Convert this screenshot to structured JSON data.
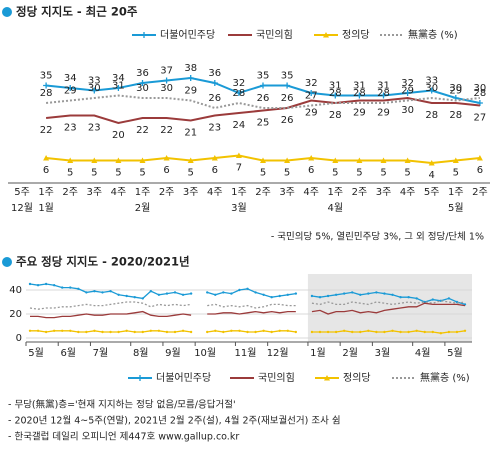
{
  "chart_data": [
    {
      "type": "line",
      "title": "정당 지지도 - 최근 20주",
      "categories": [
        "5주",
        "1주",
        "2주",
        "3주",
        "4주",
        "1주",
        "2주",
        "3주",
        "4주",
        "1주",
        "2주",
        "3주",
        "4주",
        "1주",
        "2주",
        "3주",
        "4주",
        "5주",
        "1주",
        "2주"
      ],
      "month_labels": [
        "12월",
        "1월",
        null,
        null,
        null,
        "2월",
        null,
        null,
        null,
        "3월",
        null,
        null,
        null,
        "4월",
        null,
        null,
        null,
        null,
        "5월",
        null
      ],
      "series": [
        {
          "name": "더불어민주당",
          "color": "#1a9ad6",
          "values": [
            null,
            35,
            34,
            33,
            34,
            36,
            37,
            38,
            36,
            32,
            35,
            35,
            32,
            31,
            31,
            31,
            32,
            33,
            30,
            28
          ]
        },
        {
          "name": "국민의힘",
          "color": "#9b3b3b",
          "values": [
            null,
            22,
            23,
            23,
            20,
            22,
            22,
            21,
            23,
            24,
            25,
            26,
            29,
            28,
            29,
            29,
            30,
            28,
            28,
            27
          ]
        },
        {
          "name": "정의당",
          "color": "#f2c200",
          "values": [
            null,
            6,
            5,
            5,
            5,
            5,
            6,
            5,
            6,
            7,
            5,
            5,
            6,
            5,
            5,
            5,
            5,
            4,
            5,
            6
          ]
        },
        {
          "name": "無黨층 (%)",
          "color": "#999999",
          "dashed": true,
          "values": [
            null,
            28,
            29,
            30,
            31,
            30,
            30,
            29,
            26,
            28,
            26,
            26,
            27,
            28,
            28,
            28,
            29,
            30,
            29,
            30
          ]
        }
      ],
      "note": "- 국민의당 5%, 열린민주당 3%, 그 외 정당/단체 1%"
    },
    {
      "type": "line",
      "title": "주요 정당 지지도 - 2020/2021년",
      "categories": [
        "5월",
        null,
        null,
        null,
        "6월",
        null,
        null,
        null,
        "7월",
        null,
        null,
        null,
        null,
        "8월",
        null,
        null,
        null,
        "9월",
        null,
        null,
        null,
        "10월",
        null,
        null,
        null,
        null,
        "11월",
        null,
        null,
        null,
        "12월",
        null,
        null,
        null,
        null,
        "1월",
        null,
        null,
        null,
        "2월",
        null,
        null,
        null,
        "3월",
        null,
        null,
        null,
        null,
        "4월",
        null,
        null,
        null,
        "5월",
        null,
        null
      ],
      "ylim": [
        0,
        50
      ],
      "yticks": [
        0,
        20,
        40
      ],
      "grid": true,
      "series": [
        {
          "name": "더불어민주당",
          "color": "#1a9ad6",
          "values": [
            45,
            44,
            45,
            44,
            42,
            42,
            41,
            38,
            39,
            38,
            39,
            36,
            35,
            34,
            33,
            39,
            36,
            37,
            38,
            36,
            37,
            null,
            38,
            36,
            38,
            37,
            40,
            41,
            38,
            36,
            34,
            35,
            36,
            37,
            null,
            35,
            34,
            35,
            36,
            37,
            38,
            36,
            37,
            38,
            37,
            36,
            34,
            34,
            33,
            30,
            32,
            31,
            33,
            30,
            28
          ]
        },
        {
          "name": "국민의힘",
          "color": "#9b3b3b",
          "values": [
            18,
            18,
            17,
            17,
            18,
            18,
            19,
            20,
            19,
            19,
            20,
            20,
            20,
            21,
            22,
            19,
            18,
            18,
            19,
            20,
            19,
            null,
            20,
            20,
            21,
            21,
            20,
            21,
            22,
            21,
            22,
            21,
            22,
            22,
            null,
            22,
            23,
            20,
            22,
            22,
            23,
            21,
            22,
            21,
            23,
            24,
            25,
            26,
            26,
            29,
            28,
            28,
            28,
            28,
            27
          ]
        },
        {
          "name": "정의당",
          "color": "#f2c200",
          "values": [
            6,
            6,
            5,
            6,
            6,
            6,
            5,
            5,
            6,
            5,
            5,
            5,
            6,
            5,
            5,
            6,
            6,
            5,
            5,
            6,
            5,
            null,
            5,
            6,
            5,
            6,
            6,
            5,
            5,
            6,
            5,
            6,
            6,
            5,
            null,
            5,
            5,
            5,
            5,
            6,
            5,
            5,
            6,
            5,
            5,
            6,
            5,
            5,
            6,
            5,
            5,
            4,
            5,
            5,
            6
          ]
        },
        {
          "name": "無黨층 (%)",
          "color": "#999999",
          "dashed": true,
          "values": [
            25,
            24,
            25,
            25,
            26,
            26,
            27,
            28,
            27,
            27,
            28,
            29,
            30,
            30,
            29,
            26,
            28,
            27,
            28,
            27,
            28,
            null,
            27,
            28,
            26,
            27,
            26,
            27,
            25,
            26,
            28,
            28,
            27,
            27,
            null,
            29,
            28,
            30,
            28,
            28,
            30,
            29,
            28,
            30,
            29,
            28,
            29,
            30,
            29,
            30,
            29,
            31,
            30,
            29,
            30
          ]
        }
      ]
    }
  ],
  "notes": [
    "- 무당(無黨)층='현재 지지하는 정당 없음/모름/응답거절'",
    "- 2020년 12월 4~5주(연말), 2021년 2월 2주(설), 4월 2주(재보궐선거) 조사 쉼",
    "- 한국갤럽 데일리 오피니언 제447호 www.gallup.co.kr"
  ]
}
